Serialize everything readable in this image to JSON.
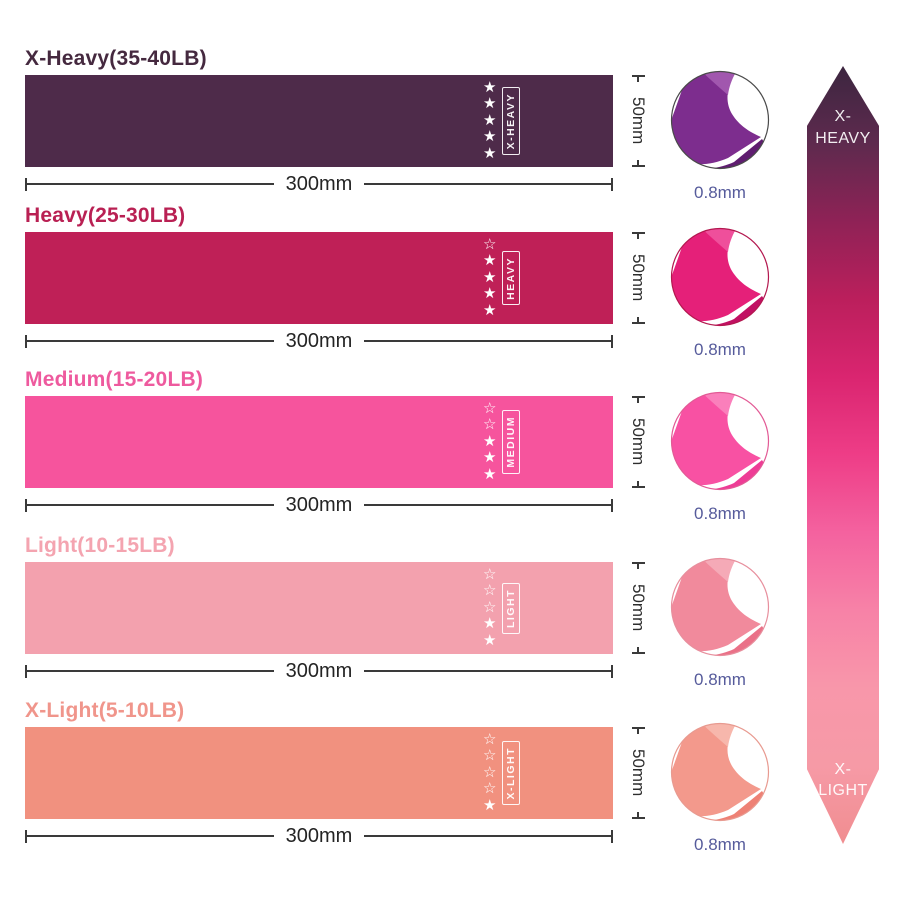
{
  "page": {
    "background": "#ffffff"
  },
  "annotation": {
    "dimension_color": "#3a3a3a",
    "dimension_text_color": "#2e2e2e",
    "thickness_text_color": "#565b9b"
  },
  "bands": [
    {
      "title": "X-Heavy(35-40LB)",
      "level_label": "X-HEAVY",
      "stars_filled": 5,
      "stars_total": 5,
      "width_label": "300mm",
      "height_label": "50mm",
      "thickness_label": "0.8mm",
      "colors": {
        "band": "#4e2b4a",
        "title": "#45293f",
        "thumb_main": "#7d2d8e",
        "thumb_light": "#a157ae",
        "thumb_dark": "#5f1d70",
        "thumb_border": "#4a4a4a"
      }
    },
    {
      "title": "Heavy(25-30LB)",
      "level_label": "HEAVY",
      "stars_filled": 4,
      "stars_total": 5,
      "width_label": "300mm",
      "height_label": "50mm",
      "thickness_label": "0.8mm",
      "colors": {
        "band": "#bf2057",
        "title": "#b92053",
        "thumb_main": "#e52079",
        "thumb_light": "#ef4f9b",
        "thumb_dark": "#c11063",
        "thumb_border": "#b3184f"
      }
    },
    {
      "title": "Medium(15-20LB)",
      "level_label": "MEDIUM",
      "stars_filled": 3,
      "stars_total": 5,
      "width_label": "300mm",
      "height_label": "50mm",
      "thickness_label": "0.8mm",
      "colors": {
        "band": "#f6549d",
        "title": "#ee5a9e",
        "thumb_main": "#f851a3",
        "thumb_light": "#fa7fbb",
        "thumb_dark": "#ee3c96",
        "thumb_border": "#e25a95"
      }
    },
    {
      "title": "Light(10-15LB)",
      "level_label": "LIGHT",
      "stars_filled": 2,
      "stars_total": 5,
      "width_label": "300mm",
      "height_label": "50mm",
      "thickness_label": "0.8mm",
      "colors": {
        "band": "#f3a1ae",
        "title": "#f4a4b0",
        "thumb_main": "#f18a9c",
        "thumb_light": "#f5aab7",
        "thumb_dark": "#ea7188",
        "thumb_border": "#e78f9d"
      }
    },
    {
      "title": "X-Light(5-10LB)",
      "level_label": "X-LIGHT",
      "stars_filled": 1,
      "stars_total": 5,
      "width_label": "300mm",
      "height_label": "50mm",
      "thickness_label": "0.8mm",
      "colors": {
        "band": "#f1917f",
        "title": "#f0958b",
        "thumb_main": "#f3998c",
        "thumb_light": "#f7b7ac",
        "thumb_dark": "#ee8175",
        "thumb_border": "#e89a90"
      }
    }
  ],
  "scale_arrow": {
    "top_label_line1": "X-",
    "top_label_line2": "HEAVY",
    "bottom_label_line1": "X-",
    "bottom_label_line2": "LIGHT",
    "gradient": [
      "#3c2640",
      "#5e2a4e",
      "#8f2256",
      "#bb1f5c",
      "#da2570",
      "#ee3d87",
      "#f4629f",
      "#f782a7",
      "#f897aa",
      "#f69aa6",
      "#f08d90"
    ]
  }
}
